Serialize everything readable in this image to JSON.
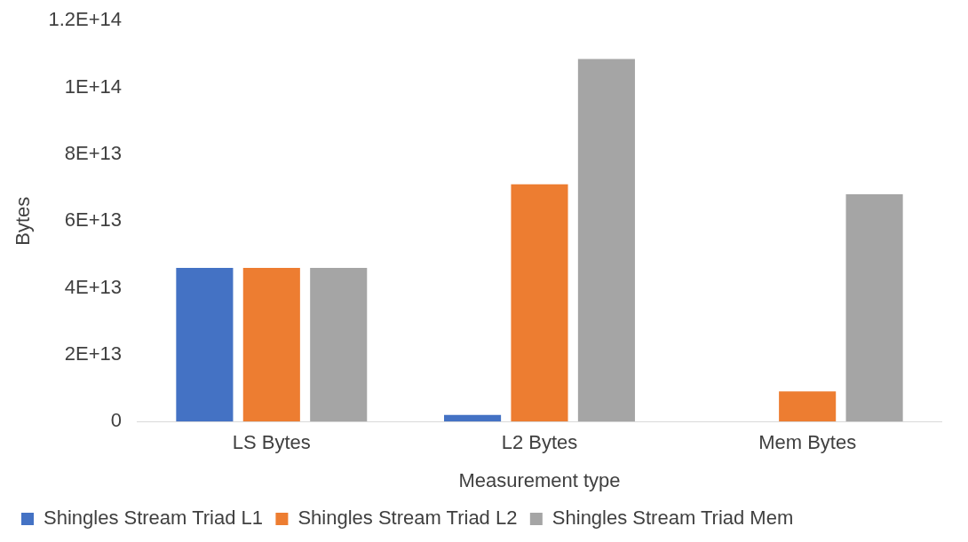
{
  "chart_data": {
    "type": "bar",
    "xlabel": "Measurement type",
    "ylabel": "Bytes",
    "categories": [
      "LS Bytes",
      "L2 Bytes",
      "Mem Bytes"
    ],
    "series": [
      {
        "name": "Shingles Stream Triad L1",
        "color": "#4472c4",
        "values": [
          46000000000000,
          2000000000000,
          0
        ]
      },
      {
        "name": "Shingles Stream Triad L2",
        "color": "#ed7d31",
        "values": [
          46000000000000,
          71000000000000,
          9000000000000
        ]
      },
      {
        "name": "Shingles Stream Triad Mem",
        "color": "#a5a5a5",
        "values": [
          46000000000000,
          108500000000000,
          68000000000000
        ]
      }
    ],
    "ylim": [
      0,
      120000000000000
    ],
    "yticks": [
      0,
      {
        "value": 20000000000000,
        "label": "2E+13"
      },
      {
        "value": 40000000000000,
        "label": "4E+13"
      },
      {
        "value": 60000000000000,
        "label": "6E+13"
      },
      {
        "value": 80000000000000,
        "label": "8E+13"
      },
      {
        "value": 100000000000000,
        "label": "1E+14"
      },
      {
        "value": 120000000000000,
        "label": "1.2E+14"
      }
    ],
    "grid": false,
    "legend": "bottom"
  }
}
